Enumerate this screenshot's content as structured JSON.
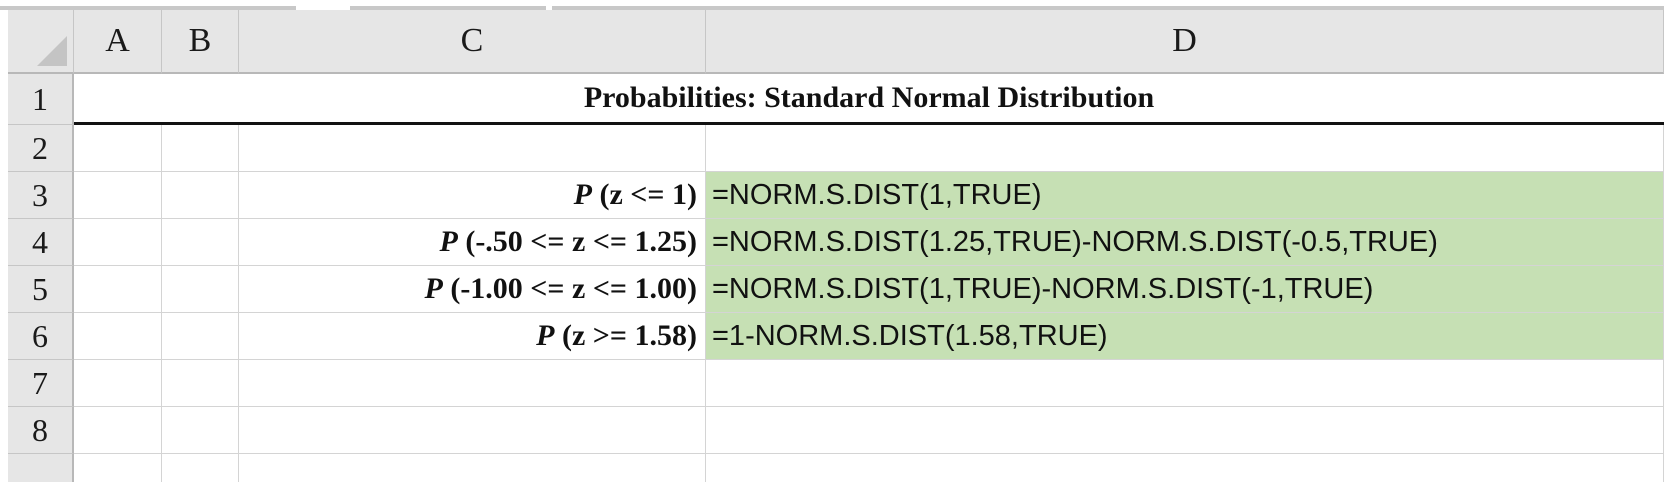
{
  "columns": [
    "A",
    "B",
    "C",
    "D"
  ],
  "rows": [
    "1",
    "2",
    "3",
    "4",
    "5",
    "6",
    "7",
    "8"
  ],
  "title": "Probabilities: Standard Normal Distribution",
  "labels": [
    {
      "p": "P",
      "rest": "(z  <= 1)"
    },
    {
      "p": "P",
      "rest": "(-.50 <= z <= 1.25)"
    },
    {
      "p": "P",
      "rest": "(-1.00 <= z  <= 1.00)"
    },
    {
      "p": "P",
      "rest": "(z  >= 1.58)"
    }
  ],
  "formulas": [
    "=NORM.S.DIST(1,TRUE)",
    "=NORM.S.DIST(1.25,TRUE)-NORM.S.DIST(-0.5,TRUE)",
    "=NORM.S.DIST(1,TRUE)-NORM.S.DIST(-1,TRUE)",
    "=1-NORM.S.DIST(1.58,TRUE)"
  ],
  "colors": {
    "formula_fill": "#c6e0b4",
    "header_fill": "#e6e6e6"
  }
}
